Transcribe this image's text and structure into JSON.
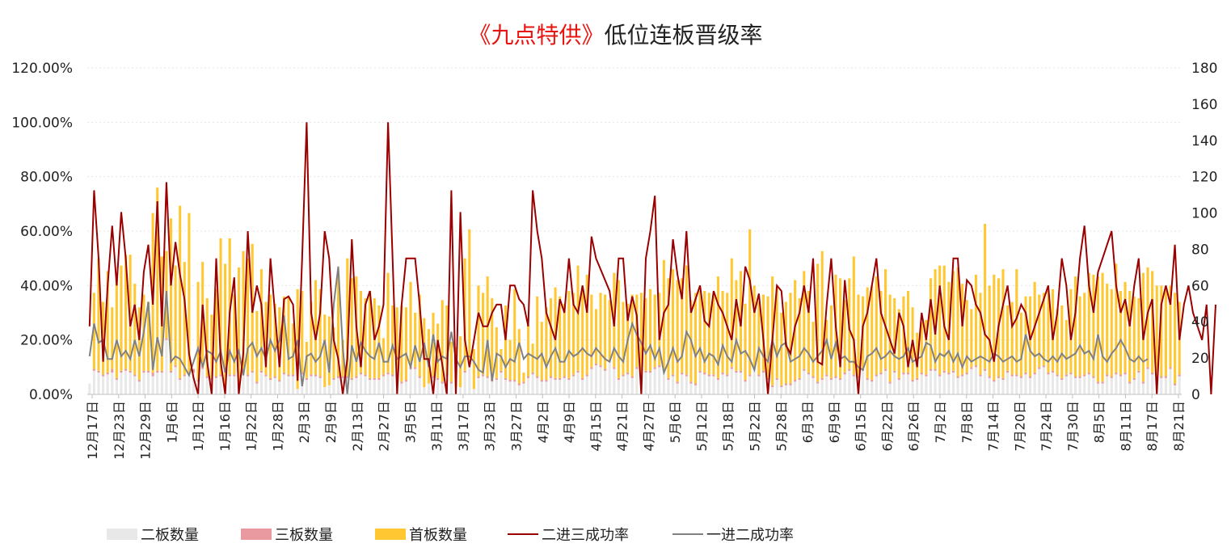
{
  "chart_data": {
    "type": "bar",
    "title_highlight": "《九点特供》",
    "title_rest": "低位连板晋级率",
    "left_axis": {
      "ylim": [
        0,
        1.2
      ],
      "ticks": [
        "0.00%",
        "20.00%",
        "40.00%",
        "60.00%",
        "80.00%",
        "100.00%",
        "120.00%"
      ]
    },
    "right_axis": {
      "ylim": [
        0,
        180
      ],
      "ticks": [
        "0",
        "20",
        "40",
        "60",
        "80",
        "100",
        "120",
        "140",
        "160",
        "180"
      ]
    },
    "x_tick_labels": [
      "12月17日",
      "12月23日",
      "12月29日",
      "1月6日",
      "1月12日",
      "1月16日",
      "1月22日",
      "1月28日",
      "2月3日",
      "2月9日",
      "2月13日",
      "2月27日",
      "3月5日",
      "3月11日",
      "3月17日",
      "3月23日",
      "3月27日",
      "4月2日",
      "4月9日",
      "4月15日",
      "4月21日",
      "4月27日",
      "5月6日",
      "5月12日",
      "5月18日",
      "5月22日",
      "5月28日",
      "6月3日",
      "6月9日",
      "6月15日",
      "6月22日",
      "6月26日",
      "7月2日",
      "7月8日",
      "7月14日",
      "7月20日",
      "7月24日",
      "7月30日",
      "8月5日",
      "8月11日",
      "8月17日",
      "8月21日"
    ],
    "legend": [
      "二板数量",
      "三板数量",
      "首板数量",
      "二进三成功率",
      "一进二成功率"
    ],
    "colors": {
      "second": "#e8e8e8",
      "third": "#e89aa0",
      "first": "#ffc832",
      "line23": "#9b0000",
      "line12": "#808080",
      "title_highlight": "#e8140f"
    },
    "series": [
      {
        "name": "二板数量",
        "axis": "right",
        "values": [
          6,
          13,
          12,
          10,
          11,
          12,
          8,
          12,
          13,
          12,
          10,
          7,
          12,
          12,
          10,
          12,
          12,
          30,
          12,
          15,
          8,
          10,
          11,
          12,
          7,
          14,
          9,
          8,
          9,
          10,
          5,
          10,
          10,
          5,
          11,
          10,
          12,
          6,
          12,
          10,
          8,
          9,
          7,
          11,
          10,
          10,
          3,
          11,
          8,
          10,
          10,
          9,
          4,
          5,
          8,
          9,
          9,
          9,
          8,
          9,
          11,
          10,
          8,
          8,
          8,
          10,
          11,
          10,
          12,
          6,
          7,
          14,
          14,
          9,
          4,
          6,
          9,
          8,
          6,
          10,
          6,
          4,
          4,
          12,
          18,
          3,
          9,
          10,
          9,
          7,
          8,
          12,
          8,
          7,
          7,
          5,
          6,
          9,
          11,
          9,
          7,
          7,
          9,
          8,
          8,
          9,
          8,
          10,
          12,
          8,
          10,
          14,
          16,
          15,
          13,
          18,
          14,
          8,
          10,
          11,
          9,
          14,
          10,
          12,
          12,
          14,
          15,
          13,
          8,
          10,
          6,
          11,
          10,
          6,
          5,
          12,
          11,
          10,
          10,
          8,
          11,
          10,
          14,
          12,
          12,
          7,
          10,
          14,
          10,
          12,
          8,
          4,
          8,
          4,
          5,
          5,
          7,
          8,
          13,
          11,
          9,
          6,
          8,
          10,
          8,
          9,
          8,
          11,
          13,
          10,
          9,
          13,
          8,
          7,
          10,
          11,
          13,
          6,
          12,
          8,
          11,
          11,
          7,
          8,
          11,
          10,
          13,
          13,
          10,
          12,
          11,
          12,
          9,
          10,
          11,
          14,
          15,
          10,
          13,
          9,
          7,
          9,
          8,
          12,
          10,
          10,
          9,
          11,
          9,
          11,
          14,
          15,
          11,
          12,
          10,
          8,
          10,
          11,
          9,
          9,
          10,
          11,
          9,
          6,
          6,
          10,
          9,
          11,
          10,
          11,
          6,
          8,
          12,
          6,
          14,
          11,
          9,
          9,
          9,
          14,
          5,
          10,
          9,
          10
        ]
      },
      {
        "name": "三板数量",
        "axis": "right",
        "values": [
          0,
          1,
          1,
          1,
          1,
          2,
          1,
          1,
          1,
          1,
          1,
          1,
          1,
          1,
          2,
          1,
          1,
          1,
          1,
          1,
          1,
          1,
          1,
          2,
          1,
          1,
          1,
          1,
          1,
          1,
          0,
          1,
          1,
          0,
          1,
          1,
          1,
          1,
          1,
          1,
          1,
          1,
          1,
          1,
          1,
          1,
          0,
          1,
          1,
          1,
          1,
          1,
          0,
          0,
          1,
          1,
          1,
          1,
          1,
          1,
          1,
          1,
          1,
          1,
          1,
          1,
          1,
          1,
          1,
          1,
          1,
          1,
          1,
          1,
          0,
          0,
          1,
          1,
          1,
          1,
          1,
          0,
          0,
          1,
          1,
          0,
          1,
          1,
          1,
          1,
          1,
          1,
          1,
          1,
          1,
          1,
          1,
          1,
          1,
          1,
          1,
          1,
          1,
          1,
          1,
          1,
          1,
          1,
          1,
          1,
          1,
          1,
          1,
          1,
          1,
          1,
          1,
          1,
          1,
          1,
          1,
          1,
          1,
          1,
          1,
          1,
          1,
          1,
          1,
          1,
          1,
          1,
          1,
          1,
          1,
          1,
          1,
          1,
          1,
          1,
          1,
          1,
          1,
          1,
          1,
          1,
          1,
          1,
          1,
          1,
          1,
          1,
          1,
          1,
          1,
          1,
          1,
          1,
          1,
          1,
          1,
          1,
          1,
          1,
          1,
          1,
          1,
          1,
          1,
          1,
          1,
          1,
          1,
          1,
          1,
          1,
          1,
          1,
          1,
          1,
          1,
          1,
          1,
          1,
          1,
          1,
          1,
          1,
          1,
          1,
          1,
          1,
          1,
          1,
          1,
          1,
          1,
          1,
          1,
          1,
          1,
          1,
          1,
          1,
          1,
          1,
          1,
          1,
          1,
          1,
          1,
          1,
          1,
          1,
          1,
          1,
          1,
          1,
          1,
          1,
          1,
          1,
          1,
          1,
          1,
          1,
          1,
          1,
          1,
          1,
          1,
          1,
          1,
          1,
          1,
          1,
          1,
          1,
          1,
          1,
          1,
          1,
          1,
          1
        ]
      },
      {
        "name": "首板数量",
        "axis": "right",
        "values": [
          0,
          42,
          62,
          40,
          56,
          34,
          55,
          58,
          63,
          64,
          50,
          40,
          42,
          38,
          88,
          101,
          63,
          48,
          84,
          55,
          95,
          62,
          88,
          0,
          54,
          58,
          43,
          35,
          48,
          75,
          67,
          75,
          44,
          65,
          67,
          64,
          70,
          39,
          56,
          40,
          46,
          40,
          40,
          42,
          43,
          28,
          55,
          45,
          20,
          40,
          52,
          48,
          40,
          38,
          28,
          55,
          20,
          65,
          55,
          55,
          45,
          42,
          48,
          44,
          40,
          20,
          55,
          38,
          35,
          42,
          40,
          47,
          30,
          45,
          38,
          30,
          35,
          30,
          45,
          38,
          22,
          22,
          28,
          62,
          72,
          22,
          50,
          45,
          55,
          45,
          28,
          12,
          40,
          22,
          50,
          30,
          5,
          28,
          16,
          44,
          32,
          40,
          43,
          50,
          45,
          40,
          48,
          45,
          58,
          50,
          55,
          40,
          30,
          40,
          41,
          33,
          52,
          54,
          40,
          38,
          45,
          40,
          45,
          40,
          45,
          40,
          40,
          60,
          55,
          58,
          56,
          52,
          60,
          45,
          50,
          44,
          45,
          45,
          44,
          56,
          45,
          45,
          60,
          50,
          55,
          42,
          80,
          45,
          40,
          42,
          45,
          60,
          50,
          40,
          45,
          50,
          55,
          44,
          54,
          45,
          30,
          65,
          70,
          30,
          40,
          56,
          55,
          40,
          50,
          65,
          45,
          40,
          50,
          52,
          54,
          45,
          55,
          48,
          40,
          38,
          42,
          45,
          40,
          25,
          28,
          30,
          50,
          55,
          60,
          58,
          50,
          55,
          60,
          50,
          40,
          32,
          50,
          45,
          80,
          50,
          58,
          54,
          60,
          36,
          40,
          58,
          35,
          42,
          44,
          50,
          40,
          40,
          45,
          45,
          36,
          40,
          30,
          46,
          55,
          44,
          45,
          55,
          56,
          58,
          60,
          50,
          48,
          60,
          46,
          50,
          50,
          45,
          40,
          60,
          55,
          56,
          50,
          50,
          48,
          45,
          50,
          40
        ]
      },
      {
        "name": "二进三成功率",
        "axis": "left",
        "values": [
          0.25,
          0.75,
          0.5,
          0.12,
          0.4,
          0.62,
          0.4,
          0.67,
          0.5,
          0.25,
          0.33,
          0.2,
          0.45,
          0.55,
          0.33,
          0.71,
          0.25,
          0.78,
          0.4,
          0.56,
          0.44,
          0.35,
          0.15,
          0.06,
          0.0,
          0.33,
          0.12,
          0.0,
          0.5,
          0.12,
          0.0,
          0.3,
          0.43,
          0.0,
          0.15,
          0.6,
          0.3,
          0.4,
          0.33,
          0.1,
          0.5,
          0.3,
          0.1,
          0.35,
          0.36,
          0.33,
          0.05,
          0.5,
          1.0,
          0.3,
          0.2,
          0.3,
          0.6,
          0.5,
          0.2,
          0.13,
          0.0,
          0.13,
          0.57,
          0.25,
          0.1,
          0.33,
          0.38,
          0.2,
          0.25,
          0.33,
          1.0,
          0.5,
          0.0,
          0.33,
          0.5,
          0.5,
          0.5,
          0.33,
          0.13,
          0.13,
          0.0,
          0.2,
          0.11,
          0.0,
          0.75,
          0.0,
          0.67,
          0.2,
          0.1,
          0.2,
          0.3,
          0.25,
          0.25,
          0.3,
          0.33,
          0.33,
          0.2,
          0.4,
          0.4,
          0.35,
          0.33,
          0.25,
          0.75,
          0.6,
          0.5,
          0.3,
          0.25,
          0.2,
          0.35,
          0.3,
          0.5,
          0.33,
          0.3,
          0.4,
          0.3,
          0.58,
          0.5,
          0.46,
          0.42,
          0.38,
          0.25,
          0.5,
          0.5,
          0.27,
          0.36,
          0.29,
          0.0,
          0.5,
          0.6,
          0.73,
          0.2,
          0.3,
          0.33,
          0.57,
          0.44,
          0.35,
          0.6,
          0.3,
          0.35,
          0.4,
          0.27,
          0.25,
          0.38,
          0.33,
          0.3,
          0.25,
          0.2,
          0.35,
          0.25,
          0.47,
          0.42,
          0.3,
          0.37,
          0.2,
          0.0,
          0.2,
          0.4,
          0.38,
          0.18,
          0.15,
          0.25,
          0.3,
          0.4,
          0.3,
          0.5,
          0.12,
          0.11,
          0.33,
          0.5,
          0.25,
          0.1,
          0.42,
          0.24,
          0.2,
          0.0,
          0.25,
          0.3,
          0.4,
          0.5,
          0.3,
          0.25,
          0.2,
          0.15,
          0.3,
          0.25,
          0.1,
          0.2,
          0.1,
          0.3,
          0.2,
          0.35,
          0.22,
          0.4,
          0.25,
          0.2,
          0.5,
          0.5,
          0.25,
          0.42,
          0.4,
          0.33,
          0.3,
          0.22,
          0.2,
          0.12,
          0.25,
          0.33,
          0.4,
          0.25,
          0.28,
          0.33,
          0.3,
          0.2,
          0.25,
          0.3,
          0.35,
          0.4,
          0.2,
          0.3,
          0.5,
          0.4,
          0.2,
          0.3,
          0.5,
          0.62,
          0.4,
          0.3,
          0.45,
          0.5,
          0.55,
          0.6,
          0.4,
          0.3,
          0.35,
          0.25,
          0.4,
          0.5,
          0.2,
          0.3,
          0.35,
          0.0,
          0.33,
          0.4,
          0.33,
          0.55,
          0.2,
          0.33,
          0.4,
          0.3,
          0.25,
          0.2,
          0.33,
          0.0,
          0.33
        ]
      },
      {
        "name": "一进二成功率",
        "axis": "left",
        "values": [
          0.14,
          0.26,
          0.19,
          0.2,
          0.13,
          0.13,
          0.2,
          0.14,
          0.16,
          0.13,
          0.2,
          0.14,
          0.23,
          0.34,
          0.09,
          0.21,
          0.14,
          0.38,
          0.12,
          0.14,
          0.13,
          0.1,
          0.07,
          0.12,
          0.17,
          0.1,
          0.16,
          0.15,
          0.12,
          0.16,
          0.08,
          0.16,
          0.12,
          0.16,
          0.07,
          0.17,
          0.19,
          0.14,
          0.17,
          0.13,
          0.2,
          0.16,
          0.2,
          0.29,
          0.13,
          0.14,
          0.2,
          0.03,
          0.14,
          0.15,
          0.12,
          0.14,
          0.2,
          0.08,
          0.33,
          0.47,
          0.17,
          0.0,
          0.18,
          0.12,
          0.19,
          0.16,
          0.14,
          0.13,
          0.19,
          0.12,
          0.12,
          0.18,
          0.13,
          0.14,
          0.15,
          0.1,
          0.18,
          0.12,
          0.19,
          0.1,
          0.22,
          0.12,
          0.14,
          0.13,
          0.23,
          0.13,
          0.1,
          0.14,
          0.14,
          0.12,
          0.09,
          0.08,
          0.2,
          0.05,
          0.15,
          0.14,
          0.1,
          0.13,
          0.12,
          0.19,
          0.13,
          0.15,
          0.14,
          0.13,
          0.15,
          0.1,
          0.14,
          0.17,
          0.12,
          0.12,
          0.16,
          0.14,
          0.15,
          0.17,
          0.15,
          0.14,
          0.17,
          0.15,
          0.13,
          0.12,
          0.17,
          0.14,
          0.12,
          0.2,
          0.26,
          0.22,
          0.19,
          0.15,
          0.18,
          0.13,
          0.17,
          0.08,
          0.12,
          0.17,
          0.12,
          0.14,
          0.23,
          0.2,
          0.14,
          0.17,
          0.12,
          0.15,
          0.14,
          0.11,
          0.18,
          0.14,
          0.12,
          0.2,
          0.15,
          0.16,
          0.13,
          0.09,
          0.17,
          0.14,
          0.12,
          0.2,
          0.14,
          0.18,
          0.19,
          0.12,
          0.13,
          0.14,
          0.17,
          0.15,
          0.12,
          0.14,
          0.16,
          0.2,
          0.13,
          0.19,
          0.13,
          0.14,
          0.12,
          0.12,
          0.1,
          0.09,
          0.14,
          0.15,
          0.17,
          0.13,
          0.14,
          0.16,
          0.14,
          0.13,
          0.14,
          0.17,
          0.12,
          0.13,
          0.14,
          0.19,
          0.18,
          0.12,
          0.15,
          0.14,
          0.16,
          0.12,
          0.15,
          0.1,
          0.14,
          0.12,
          0.13,
          0.14,
          0.13,
          0.12,
          0.15,
          0.14,
          0.12,
          0.13,
          0.14,
          0.12,
          0.13,
          0.22,
          0.16,
          0.14,
          0.15,
          0.13,
          0.12,
          0.14,
          0.12,
          0.15,
          0.13,
          0.14,
          0.15,
          0.18,
          0.15,
          0.16,
          0.13,
          0.22,
          0.14,
          0.12,
          0.15,
          0.17,
          0.2,
          0.17,
          0.13,
          0.12,
          0.14,
          0.12,
          0.13
        ]
      }
    ]
  }
}
